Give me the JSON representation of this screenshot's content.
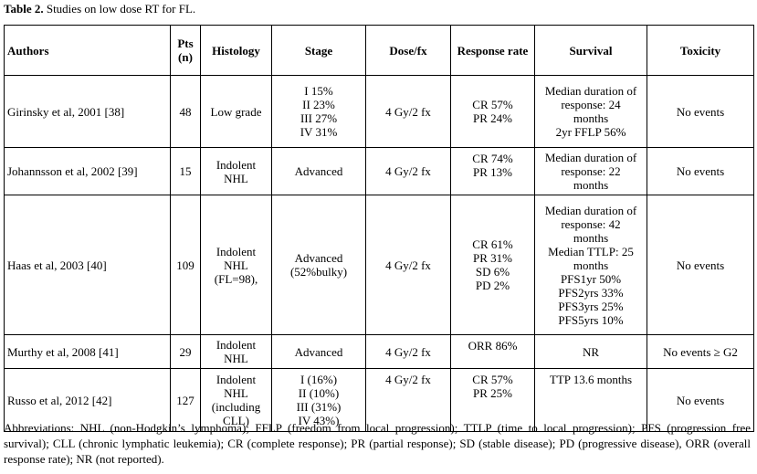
{
  "caption": {
    "label": "Table 2.",
    "text": " Studies on low dose RT for FL."
  },
  "headers": [
    "Authors",
    "Pts\n(n)",
    "Histology",
    "Stage",
    "Dose/fx",
    "Response rate",
    "Survival",
    "Toxicity"
  ],
  "rows": [
    {
      "authors": "Girinsky et al, 2001 [38]",
      "pts": "48",
      "histology": "Low grade",
      "stage": "I 15%\nII 23%\nIII 27%\nIV 31%",
      "dose": "4 Gy/2 fx",
      "response": "CR 57%\nPR 24%",
      "survival": "Median duration of\nresponse: 24\nmonths\n2yr FFLP 56%",
      "toxicity": "No events"
    },
    {
      "authors": "Johannsson et al, 2002 [39]",
      "pts": "15",
      "histology": "Indolent\nNHL",
      "stage": "Advanced",
      "dose": "4 Gy/2 fx",
      "response": "CR 74%\nPR 13%",
      "survival": "Median duration of\nresponse: 22\nmonths",
      "toxicity": "No events"
    },
    {
      "authors": "Haas et al, 2003 [40]",
      "pts": "109",
      "histology": "Indolent\nNHL\n(FL=98),",
      "stage": "Advanced\n(52%bulky)",
      "dose": "4 Gy/2 fx",
      "response": "CR 61%\nPR 31%\nSD 6%\nPD 2%",
      "survival": "Median duration of\nresponse: 42\nmonths\nMedian TTLP: 25\nmonths\nPFS1yr 50%\nPFS2yrs 33%\nPFS3yrs 25%\nPFS5yrs 10%",
      "toxicity": "No events"
    },
    {
      "authors": "Murthy et al, 2008 [41]",
      "pts": "29",
      "histology": "Indolent\nNHL",
      "stage": "Advanced",
      "dose": "4 Gy/2 fx",
      "response": "ORR 86%",
      "survival": "NR",
      "toxicity": "No events ≥ G2"
    },
    {
      "authors": "Russo et al, 2012 [42]",
      "pts": "127",
      "histology": "Indolent\nNHL\n(including\nCLL)",
      "stage": "I (16%)\nII (10%)\nIII (31%)\nIV 43%)",
      "dose": "4 Gy/2 fx",
      "response": "CR 57%\nPR 25%",
      "survival": "TTP 13.6 months",
      "toxicity": "No events"
    }
  ],
  "abbreviations": "Abbreviations: NHL (non-Hodgkin’s lymphoma); FFLP (freedom from local progression); TTLP (time to local progression); PFS (progression free survival); CLL (chronic lymphatic leukemia); CR (complete response); PR (partial response); SD (stable disease); PD (progressive disease), ORR (overall response rate); NR (not reported)."
}
